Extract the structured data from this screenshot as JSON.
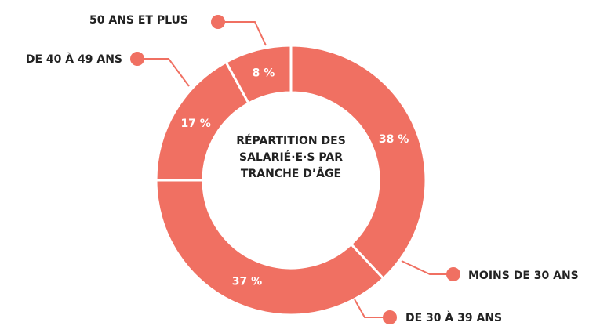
{
  "chart_data": {
    "type": "donut",
    "title": "RÉPARTITION DES SALARIÉ·E·S PAR TRANCHE D’ÂGE",
    "categories": [
      "MOINS DE 30 ANS",
      "DE 30 À 39 ANS",
      "DE 40 À 49 ANS",
      "50 ANS ET PLUS"
    ],
    "values": [
      38,
      37,
      17,
      8
    ],
    "value_labels": [
      "38 %",
      "37 %",
      "17 %",
      "8 %"
    ],
    "color": "#f07062"
  }
}
